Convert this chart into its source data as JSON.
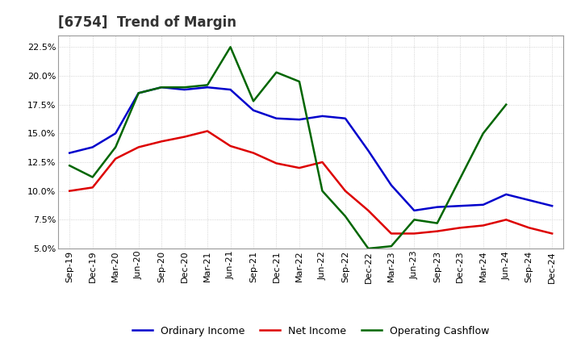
{
  "title": "[6754]  Trend of Margin",
  "x_labels": [
    "Sep-19",
    "Dec-19",
    "Mar-20",
    "Jun-20",
    "Sep-20",
    "Dec-20",
    "Mar-21",
    "Jun-21",
    "Sep-21",
    "Dec-21",
    "Mar-22",
    "Jun-22",
    "Sep-22",
    "Dec-22",
    "Mar-23",
    "Jun-23",
    "Sep-23",
    "Dec-23",
    "Mar-24",
    "Jun-24",
    "Sep-24",
    "Dec-24"
  ],
  "ordinary_income": [
    13.3,
    13.8,
    15.0,
    18.5,
    19.0,
    18.8,
    19.0,
    18.8,
    17.0,
    16.3,
    16.2,
    16.5,
    16.3,
    13.5,
    10.5,
    8.3,
    8.6,
    8.7,
    8.8,
    9.7,
    9.2,
    8.7
  ],
  "net_income": [
    10.0,
    10.3,
    12.8,
    13.8,
    14.3,
    14.7,
    15.2,
    13.9,
    13.3,
    12.4,
    12.0,
    12.5,
    10.0,
    8.3,
    6.3,
    6.3,
    6.5,
    6.8,
    7.0,
    7.5,
    6.8,
    6.3
  ],
  "operating_cashflow": [
    12.2,
    11.2,
    13.8,
    18.5,
    19.0,
    19.0,
    19.2,
    22.5,
    17.8,
    20.3,
    19.5,
    10.0,
    7.8,
    5.0,
    5.2,
    7.5,
    7.2,
    null,
    15.0,
    17.5,
    null,
    null
  ],
  "ylim": [
    5.0,
    23.5
  ],
  "yticks": [
    5.0,
    7.5,
    10.0,
    12.5,
    15.0,
    17.5,
    20.0,
    22.5
  ],
  "line_colors": {
    "ordinary_income": "#0000cc",
    "net_income": "#dd0000",
    "operating_cashflow": "#006600"
  },
  "legend_labels": {
    "ordinary_income": "Ordinary Income",
    "net_income": "Net Income",
    "operating_cashflow": "Operating Cashflow"
  },
  "bg_color": "#ffffff",
  "grid_color": "#bbbbbb",
  "title_fontsize": 12,
  "legend_fontsize": 9,
  "tick_fontsize": 8
}
